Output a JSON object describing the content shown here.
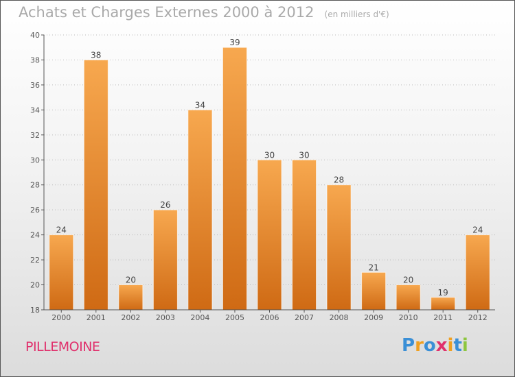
{
  "title": "Achats et Charges Externes 2000 à 2012",
  "subtitle": "(en milliers d'€)",
  "place": "PILLEMOINE",
  "brand": {
    "letters": [
      "P",
      "r",
      "o",
      "x",
      "i",
      "t",
      "i"
    ],
    "colors": [
      "#3a8fd6",
      "#f0a020",
      "#3a8fd6",
      "#e0306c",
      "#f0a020",
      "#3a8fd6",
      "#8dc63f"
    ]
  },
  "colors": {
    "bar_top": "#f7a84f",
    "bar_bottom": "#cf6a14",
    "axis": "#555555",
    "grid": "#bbbbbb",
    "text": "#555555"
  },
  "chart_data": {
    "type": "bar",
    "categories": [
      "2000",
      "2001",
      "2002",
      "2003",
      "2004",
      "2005",
      "2006",
      "2007",
      "2008",
      "2009",
      "2010",
      "2011",
      "2012"
    ],
    "values": [
      24,
      38,
      20,
      26,
      34,
      39,
      30,
      30,
      28,
      21,
      20,
      19,
      24
    ],
    "ylim": [
      18,
      40
    ],
    "yticks": [
      18,
      20,
      22,
      24,
      26,
      28,
      30,
      32,
      34,
      36,
      38,
      40
    ],
    "grid": "horizontal dotted",
    "legend": "none"
  }
}
